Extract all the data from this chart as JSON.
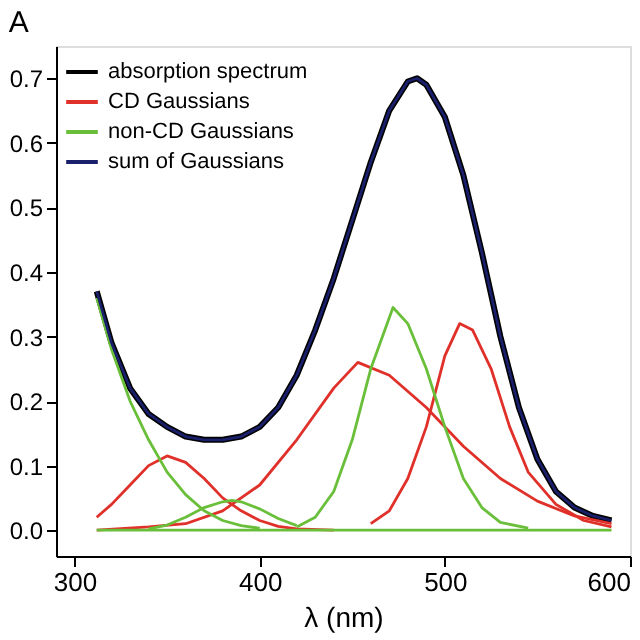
{
  "chart_data": {
    "type": "line",
    "title": "A",
    "xlabel": "λ (nm)",
    "xlim": [
      290,
      600
    ],
    "xticks": [
      300,
      400,
      500,
      600
    ],
    "ylim": [
      -0.04,
      0.75
    ],
    "yticks": [
      {
        "value": 0,
        "label": "0.0"
      },
      0.1,
      0.2,
      0.3,
      0.4,
      0.5,
      0.6,
      0.7
    ],
    "grid": false,
    "legend": "top left",
    "marker": "none",
    "line_style": "solid",
    "series": [
      {
        "name": "absorption spectrum",
        "color": "#000000",
        "x": [
          312,
          320,
          330,
          340,
          350,
          360,
          370,
          380,
          390,
          400,
          410,
          420,
          430,
          440,
          450,
          460,
          470,
          480,
          485,
          490,
          500,
          510,
          520,
          530,
          540,
          550,
          560,
          570,
          580,
          590
        ],
        "values": [
          0.37,
          0.29,
          0.22,
          0.18,
          0.16,
          0.145,
          0.14,
          0.14,
          0.145,
          0.16,
          0.19,
          0.24,
          0.31,
          0.39,
          0.48,
          0.57,
          0.65,
          0.695,
          0.7,
          0.69,
          0.64,
          0.55,
          0.43,
          0.3,
          0.19,
          0.11,
          0.06,
          0.035,
          0.022,
          0.015
        ]
      },
      {
        "name": "CD Gaussians",
        "color": "#e0302a",
        "x": [
          312,
          320,
          330,
          340,
          350,
          360,
          370,
          380,
          390,
          400,
          410,
          420,
          440
        ],
        "values": [
          0.02,
          0.04,
          0.07,
          0.1,
          0.115,
          0.105,
          0.08,
          0.05,
          0.03,
          0.015,
          0.006,
          0.002,
          0
        ]
      },
      {
        "color": "#e0302a",
        "x": [
          312,
          340,
          360,
          380,
          400,
          420,
          440,
          453,
          470,
          490,
          510,
          530,
          550,
          570,
          590
        ],
        "values": [
          0,
          0.005,
          0.01,
          0.03,
          0.07,
          0.14,
          0.22,
          0.26,
          0.24,
          0.19,
          0.13,
          0.08,
          0.045,
          0.022,
          0.01
        ]
      },
      {
        "color": "#e0302a",
        "x": [
          460,
          470,
          480,
          490,
          500,
          508,
          515,
          525,
          535,
          545,
          560,
          575,
          590
        ],
        "values": [
          0.01,
          0.03,
          0.08,
          0.16,
          0.27,
          0.32,
          0.31,
          0.25,
          0.16,
          0.09,
          0.04,
          0.015,
          0.005
        ]
      },
      {
        "name": "non-CD Gaussians",
        "color": "#6abf3a",
        "x": [
          312,
          320,
          330,
          340,
          350,
          360,
          370,
          380,
          390,
          400
        ],
        "values": [
          0.36,
          0.28,
          0.2,
          0.14,
          0.09,
          0.055,
          0.03,
          0.015,
          0.007,
          0.003
        ]
      },
      {
        "color": "#6abf3a",
        "x": [
          340,
          350,
          360,
          370,
          380,
          385,
          390,
          400,
          410,
          420
        ],
        "values": [
          0.002,
          0.008,
          0.02,
          0.035,
          0.044,
          0.046,
          0.044,
          0.033,
          0.018,
          0.007
        ]
      },
      {
        "color": "#6abf3a",
        "x": [
          420,
          430,
          440,
          450,
          460,
          472,
          480,
          490,
          500,
          510,
          520,
          530,
          545
        ],
        "values": [
          0.005,
          0.02,
          0.06,
          0.14,
          0.25,
          0.345,
          0.32,
          0.25,
          0.16,
          0.08,
          0.035,
          0.012,
          0.003
        ]
      },
      {
        "color": "#6abf3a",
        "x": [
          312,
          590
        ],
        "values": [
          0,
          0
        ]
      },
      {
        "name": "sum of Gaussians",
        "color": "#1a1f6b",
        "x": [
          312,
          320,
          330,
          340,
          350,
          360,
          370,
          380,
          390,
          400,
          410,
          420,
          430,
          440,
          450,
          460,
          470,
          480,
          485,
          490,
          500,
          510,
          520,
          530,
          540,
          550,
          560,
          570,
          580,
          590
        ],
        "values": [
          0.37,
          0.29,
          0.22,
          0.18,
          0.16,
          0.145,
          0.14,
          0.14,
          0.145,
          0.16,
          0.19,
          0.24,
          0.31,
          0.39,
          0.48,
          0.57,
          0.65,
          0.695,
          0.7,
          0.69,
          0.64,
          0.55,
          0.43,
          0.3,
          0.19,
          0.11,
          0.06,
          0.035,
          0.022,
          0.015
        ]
      }
    ]
  }
}
